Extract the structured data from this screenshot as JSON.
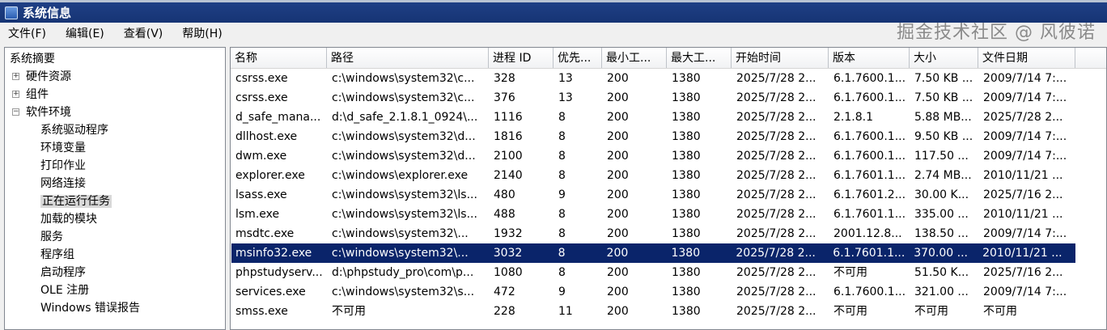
{
  "window": {
    "title": "系统信息"
  },
  "menu": [
    "文件(F)",
    "编辑(E)",
    "查看(V)",
    "帮助(H)"
  ],
  "tree": {
    "root": "系统摘要",
    "nodes": [
      {
        "label": "硬件资源",
        "expander": "+"
      },
      {
        "label": "组件",
        "expander": "+"
      },
      {
        "label": "软件环境",
        "expander": "-"
      }
    ],
    "children": [
      "系统驱动程序",
      "环境变量",
      "打印作业",
      "网络连接",
      "正在运行任务",
      "加载的模块",
      "服务",
      "程序组",
      "启动程序",
      "OLE 注册",
      "Windows 错误报告"
    ],
    "selected": "正在运行任务"
  },
  "table": {
    "columns": [
      "名称",
      "路径",
      "进程 ID",
      "优先...",
      "最小工...",
      "最大工...",
      "开始时间",
      "版本",
      "大小",
      "文件日期"
    ],
    "rows": [
      [
        "csrss.exe",
        "c:\\windows\\system32\\c...",
        "328",
        "13",
        "200",
        "1380",
        "2025/7/28 2...",
        "6.1.7600.1...",
        "7.50 KB ...",
        "2009/7/14 7:..."
      ],
      [
        "csrss.exe",
        "c:\\windows\\system32\\c...",
        "376",
        "13",
        "200",
        "1380",
        "2025/7/28 2...",
        "6.1.7600.1...",
        "7.50 KB ...",
        "2009/7/14 7:..."
      ],
      [
        "d_safe_mana...",
        "d:\\d_safe_2.1.8.1_0924\\...",
        "1116",
        "8",
        "200",
        "1380",
        "2025/7/28 2...",
        "2.1.8.1",
        "5.88 MB...",
        "2025/7/28 2..."
      ],
      [
        "dllhost.exe",
        "c:\\windows\\system32\\d...",
        "1816",
        "8",
        "200",
        "1380",
        "2025/7/28 2...",
        "6.1.7600.1...",
        "9.50 KB ...",
        "2009/7/14 7:..."
      ],
      [
        "dwm.exe",
        "c:\\windows\\system32\\d...",
        "2100",
        "8",
        "200",
        "1380",
        "2025/7/28 2...",
        "6.1.7600.1...",
        "117.50 ...",
        "2009/7/14 7:..."
      ],
      [
        "explorer.exe",
        "c:\\windows\\explorer.exe",
        "2140",
        "8",
        "200",
        "1380",
        "2025/7/28 2...",
        "6.1.7601.1...",
        "2.74 MB...",
        "2010/11/21 ..."
      ],
      [
        "lsass.exe",
        "c:\\windows\\system32\\ls...",
        "480",
        "9",
        "200",
        "1380",
        "2025/7/28 2...",
        "6.1.7601.2...",
        "30.00 K...",
        "2025/7/16 2..."
      ],
      [
        "lsm.exe",
        "c:\\windows\\system32\\ls...",
        "488",
        "8",
        "200",
        "1380",
        "2025/7/28 2...",
        "6.1.7601.1...",
        "335.00 ...",
        "2010/11/21 ..."
      ],
      [
        "msdtc.exe",
        "c:\\windows\\system32\\...",
        "1932",
        "8",
        "200",
        "1380",
        "2025/7/28 2...",
        "2001.12.8...",
        "138.50 ...",
        "2009/7/14 7:..."
      ],
      [
        "msinfo32.exe",
        "c:\\windows\\system32\\...",
        "3032",
        "8",
        "200",
        "1380",
        "2025/7/28 2...",
        "6.1.7601.1...",
        "370.00 ...",
        "2010/11/21 ..."
      ],
      [
        "phpstudyserv...",
        "d:\\phpstudy_pro\\com\\p...",
        "1080",
        "8",
        "200",
        "1380",
        "2025/7/28 2...",
        "不可用",
        "51.50 K...",
        "2025/7/16 2..."
      ],
      [
        "services.exe",
        "c:\\windows\\system32\\s...",
        "472",
        "9",
        "200",
        "1380",
        "2025/7/28 2...",
        "6.1.7600.1...",
        "321.00 ...",
        "2009/7/14 7:..."
      ],
      [
        "smss.exe",
        "不可用",
        "228",
        "11",
        "200",
        "1380",
        "2025/7/28 2...",
        "不可用",
        "不可用",
        "不可用"
      ]
    ],
    "selected_row": 9
  },
  "watermark": "掘金技术社区 @ 风彼诺",
  "colors": {
    "titlebar": "#1f3f85",
    "selection": "#0a246a"
  }
}
